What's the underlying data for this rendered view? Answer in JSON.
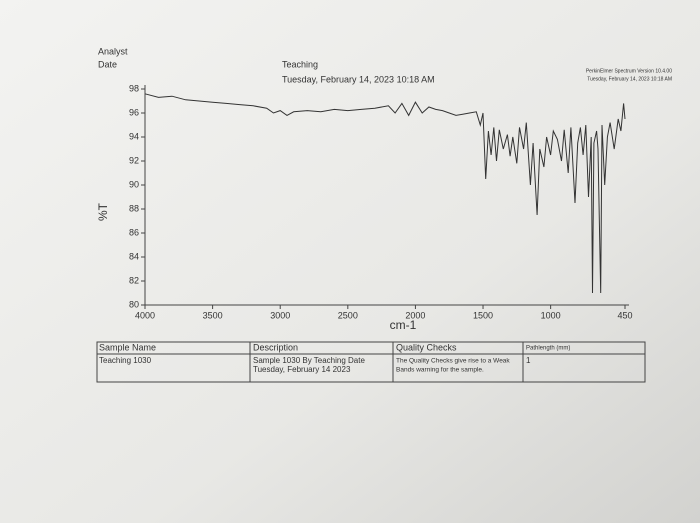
{
  "header": {
    "analyst": "Analyst",
    "date": "Date",
    "operator": "Teaching",
    "timestamp": "Tuesday, February 14, 2023 10:18 AM",
    "software": "PerkinElmer Spectrum Version 10.4.00",
    "software_date": "Tuesday, February 14, 2023 10:18 AM"
  },
  "chart_data": {
    "type": "line",
    "y_label": "%T",
    "x_label": "cm-1",
    "color": "#333333",
    "xlim": [
      4000,
      450
    ],
    "ylim": [
      80,
      98
    ],
    "xticks": [
      4000,
      3500,
      3000,
      2500,
      2000,
      1500,
      1000,
      450
    ],
    "yticks": [
      80,
      82,
      84,
      86,
      88,
      90,
      92,
      94,
      96,
      98
    ],
    "x": [
      4000,
      3900,
      3800,
      3700,
      3600,
      3500,
      3400,
      3300,
      3200,
      3100,
      3050,
      3000,
      2950,
      2900,
      2800,
      2700,
      2600,
      2500,
      2400,
      2300,
      2200,
      2150,
      2100,
      2050,
      2000,
      1950,
      1900,
      1850,
      1800,
      1750,
      1700,
      1650,
      1600,
      1550,
      1520,
      1500,
      1480,
      1460,
      1440,
      1420,
      1400,
      1380,
      1350,
      1320,
      1300,
      1280,
      1250,
      1230,
      1200,
      1180,
      1150,
      1130,
      1100,
      1080,
      1050,
      1030,
      1000,
      980,
      950,
      920,
      900,
      870,
      850,
      820,
      800,
      780,
      760,
      740,
      720,
      700,
      690,
      680,
      660,
      650,
      630,
      620,
      600,
      580,
      560,
      530,
      500,
      480,
      460,
      450
    ],
    "values": [
      97.6,
      97.3,
      97.4,
      97.1,
      97.0,
      96.9,
      96.8,
      96.7,
      96.6,
      96.4,
      96.0,
      96.2,
      95.8,
      96.1,
      96.2,
      96.1,
      96.3,
      96.2,
      96.3,
      96.4,
      96.6,
      96.0,
      96.8,
      95.8,
      96.9,
      96.0,
      96.5,
      96.3,
      96.2,
      96.0,
      95.8,
      95.9,
      96.0,
      96.1,
      95.0,
      96.0,
      90.5,
      94.5,
      92.5,
      94.8,
      92.0,
      94.6,
      93.0,
      94.2,
      92.4,
      94.0,
      91.8,
      94.8,
      93.0,
      95.2,
      90.0,
      93.5,
      87.5,
      93.0,
      91.5,
      94.0,
      92.5,
      94.5,
      93.8,
      92.0,
      94.6,
      91.0,
      94.8,
      88.5,
      93.5,
      94.8,
      92.5,
      95.0,
      89.0,
      94.0,
      81.0,
      93.5,
      94.5,
      93.0,
      81.0,
      95.0,
      90.0,
      94.0,
      95.2,
      93.0,
      95.5,
      94.5,
      96.8,
      95.5
    ]
  },
  "table": {
    "headers": [
      "Sample Name",
      "Description",
      "Quality Checks",
      "Pathlength (mm)"
    ],
    "cells": [
      [
        "Teaching 1030"
      ],
      [
        "Sample 1030 By Teaching Date",
        "Tuesday, February 14 2023"
      ],
      [
        "The Quality Checks give rise to a Weak",
        "Bands warning for the sample."
      ],
      [
        "1"
      ]
    ]
  }
}
